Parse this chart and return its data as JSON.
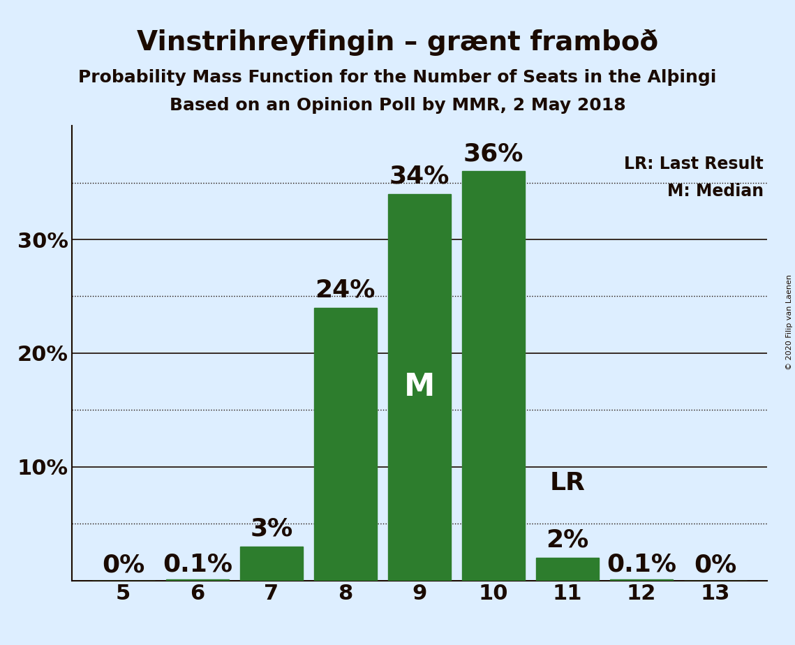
{
  "title": "Vinstrihreyfingin – grænt framboð",
  "subtitle1": "Probability Mass Function for the Number of Seats in the Alþingi",
  "subtitle2": "Based on an Opinion Poll by MMR, 2 May 2018",
  "copyright": "© 2020 Filip van Laenen",
  "seats": [
    5,
    6,
    7,
    8,
    9,
    10,
    11,
    12,
    13
  ],
  "probabilities": [
    0.0,
    0.001,
    0.03,
    0.24,
    0.34,
    0.36,
    0.02,
    0.001,
    0.0
  ],
  "bar_labels": [
    "0%",
    "0.1%",
    "3%",
    "24%",
    "34%",
    "36%",
    "2%",
    "0.1%",
    "0%"
  ],
  "bar_color": "#2d7d2d",
  "background_color": "#ddeeff",
  "median_seat": 9,
  "lr_seat": 11,
  "ylim": [
    0,
    0.4
  ],
  "yticks": [
    0.0,
    0.1,
    0.2,
    0.3
  ],
  "ytick_labels": [
    "",
    "10%",
    "20%",
    "30%"
  ],
  "dotted_lines": [
    0.05,
    0.15,
    0.25,
    0.35
  ],
  "legend_lr": "LR: Last Result",
  "legend_m": "M: Median",
  "text_color": "#1a0a00",
  "title_fontsize": 28,
  "subtitle_fontsize": 18,
  "label_fontsize": 20,
  "axis_fontsize": 22,
  "annotation_fontsize": 26
}
